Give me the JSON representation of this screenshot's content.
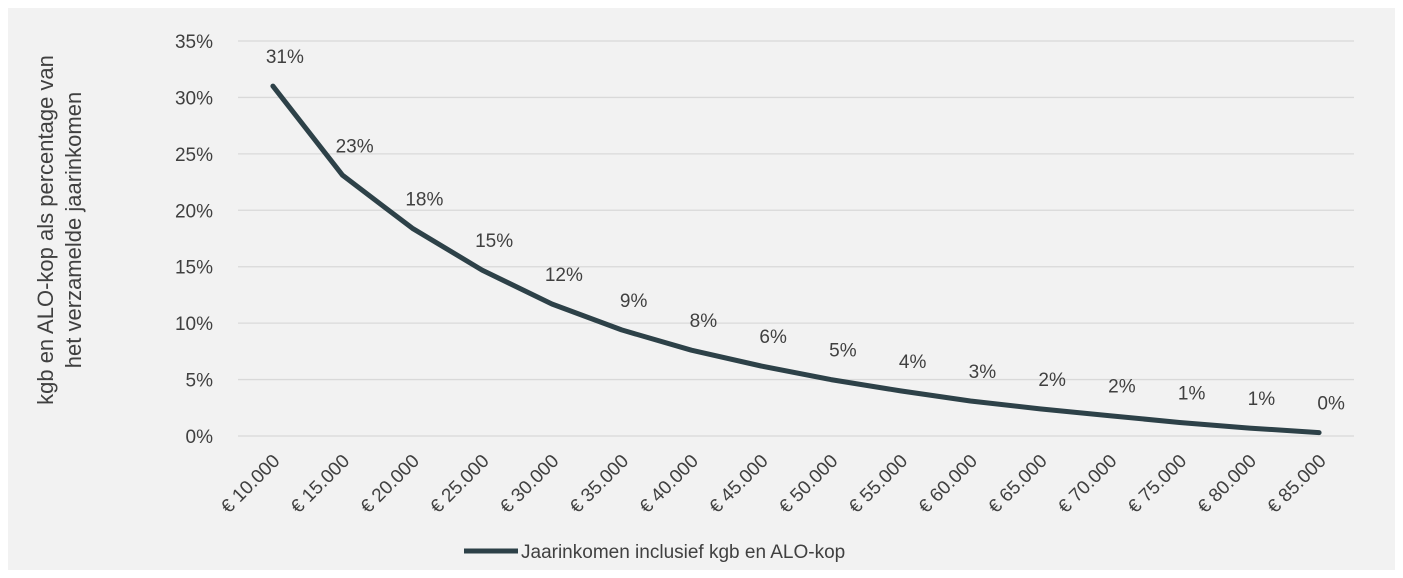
{
  "chart_data": {
    "type": "line",
    "categories": [
      "€ 10.000",
      "€ 15.000",
      "€ 20.000",
      "€ 25.000",
      "€ 30.000",
      "€ 35.000",
      "€ 40.000",
      "€ 45.000",
      "€ 50.000",
      "€ 55.000",
      "€ 60.000",
      "€ 65.000",
      "€ 70.000",
      "€ 75.000",
      "€ 80.000",
      "€ 85.000"
    ],
    "series": [
      {
        "name": "Jaarinkomen inclusief kgb en ALO-kop",
        "values": [
          31.0,
          23.1,
          18.4,
          14.7,
          11.7,
          9.4,
          7.6,
          6.2,
          5.0,
          4.0,
          3.1,
          2.4,
          1.8,
          1.2,
          0.7,
          0.3
        ],
        "data_labels": [
          "31%",
          "23%",
          "18%",
          "15%",
          "12%",
          "9%",
          "8%",
          "6%",
          "5%",
          "4%",
          "3%",
          "2%",
          "2%",
          "1%",
          "1%",
          "0%"
        ]
      }
    ],
    "y_ticks": [
      "0%",
      "5%",
      "10%",
      "15%",
      "20%",
      "25%",
      "30%",
      "35%"
    ],
    "ylim": [
      0,
      35
    ],
    "ylabel_line1": "kgb en ALO-kop als percentage van",
    "ylabel_line2": "het verzamelde jaarinkomen",
    "xlabel": "",
    "grid": true,
    "legend_position": "bottom",
    "colors": {
      "line": "#2d4148",
      "grid": "#d9d9d9",
      "text": "#404040",
      "background": "#f2f2f2"
    }
  }
}
